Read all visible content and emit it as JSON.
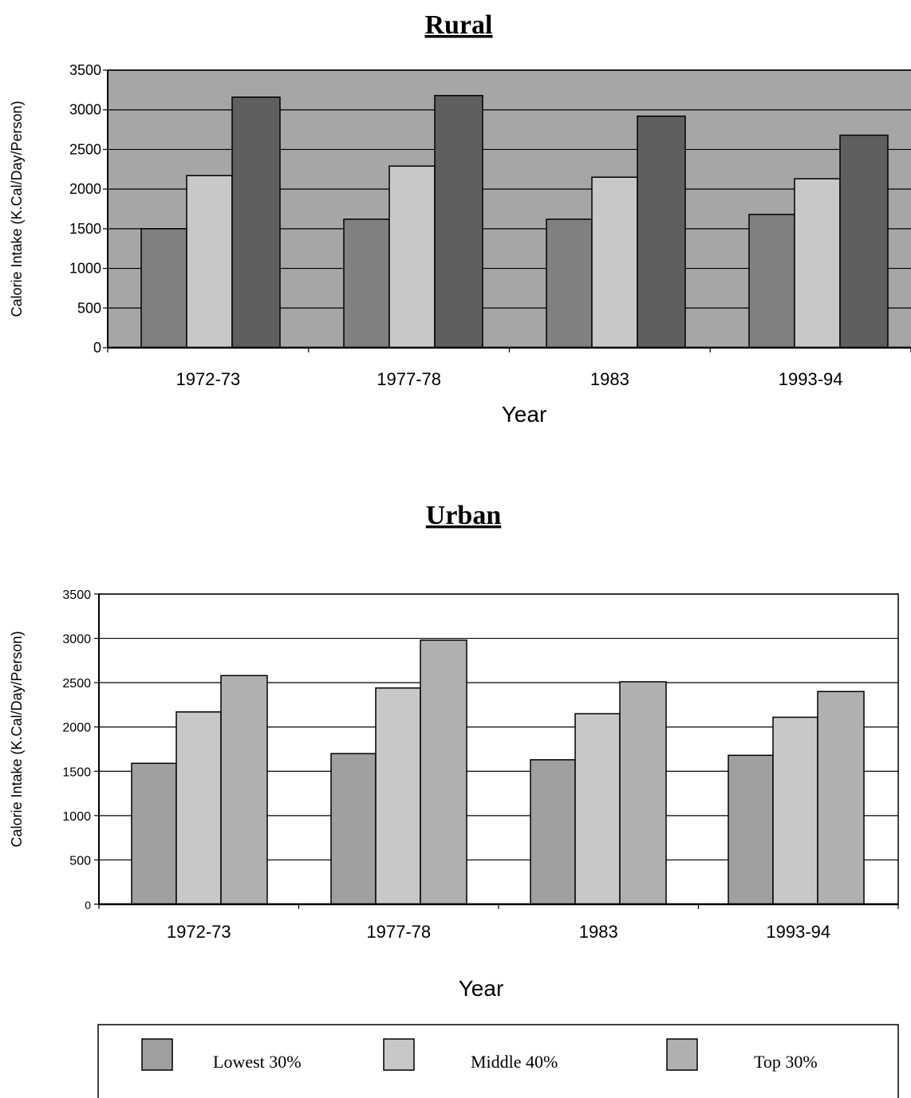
{
  "chart_data": [
    {
      "type": "bar",
      "title": "Rural",
      "xlabel": "Year",
      "ylabel": "Calorie Intake  (K.Cal/Day/Person)",
      "ylim": [
        0,
        3500
      ],
      "yticks": [
        0,
        500,
        1000,
        1500,
        2000,
        2500,
        3000,
        3500
      ],
      "categories": [
        "1972-73",
        "1977-78",
        "1983",
        "1993-94"
      ],
      "series": [
        {
          "name": "Lowest 30%",
          "values": [
            1500,
            1620,
            1620,
            1680
          ],
          "color": "#808080"
        },
        {
          "name": "Middle 40%",
          "values": [
            2170,
            2290,
            2150,
            2130
          ],
          "color": "#c8c8c8"
        },
        {
          "name": "Top 30%",
          "values": [
            3160,
            3180,
            2920,
            2680
          ],
          "color": "#5f5f5f"
        }
      ],
      "plot_background": "#a6a6a6",
      "grid": true
    },
    {
      "type": "bar",
      "title": "Urban",
      "xlabel": "Year",
      "ylabel": "Calorie Intake (K.Cal/Day/Person)",
      "ylim": [
        0,
        3500
      ],
      "yticks": [
        0,
        500,
        1000,
        1500,
        2000,
        2500,
        3000,
        3500
      ],
      "categories": [
        "1972-73",
        "1977-78",
        "1983",
        "1993-94"
      ],
      "series": [
        {
          "name": "Lowest 30%",
          "values": [
            1590,
            1700,
            1630,
            1680
          ],
          "color": "#a0a0a0"
        },
        {
          "name": "Middle 40%",
          "values": [
            2170,
            2440,
            2150,
            2110
          ],
          "color": "#c8c8c8"
        },
        {
          "name": "Top 30%",
          "values": [
            2580,
            2980,
            2510,
            2400
          ],
          "color": "#b0b0b0"
        }
      ],
      "plot_background": "#ffffff",
      "grid": true
    }
  ],
  "legend": {
    "items": [
      {
        "label": "Lowest 30%",
        "color": "#a0a0a0"
      },
      {
        "label": "Middle 40%",
        "color": "#c8c8c8"
      },
      {
        "label": "Top 30%",
        "color": "#b0b0b0"
      }
    ]
  }
}
